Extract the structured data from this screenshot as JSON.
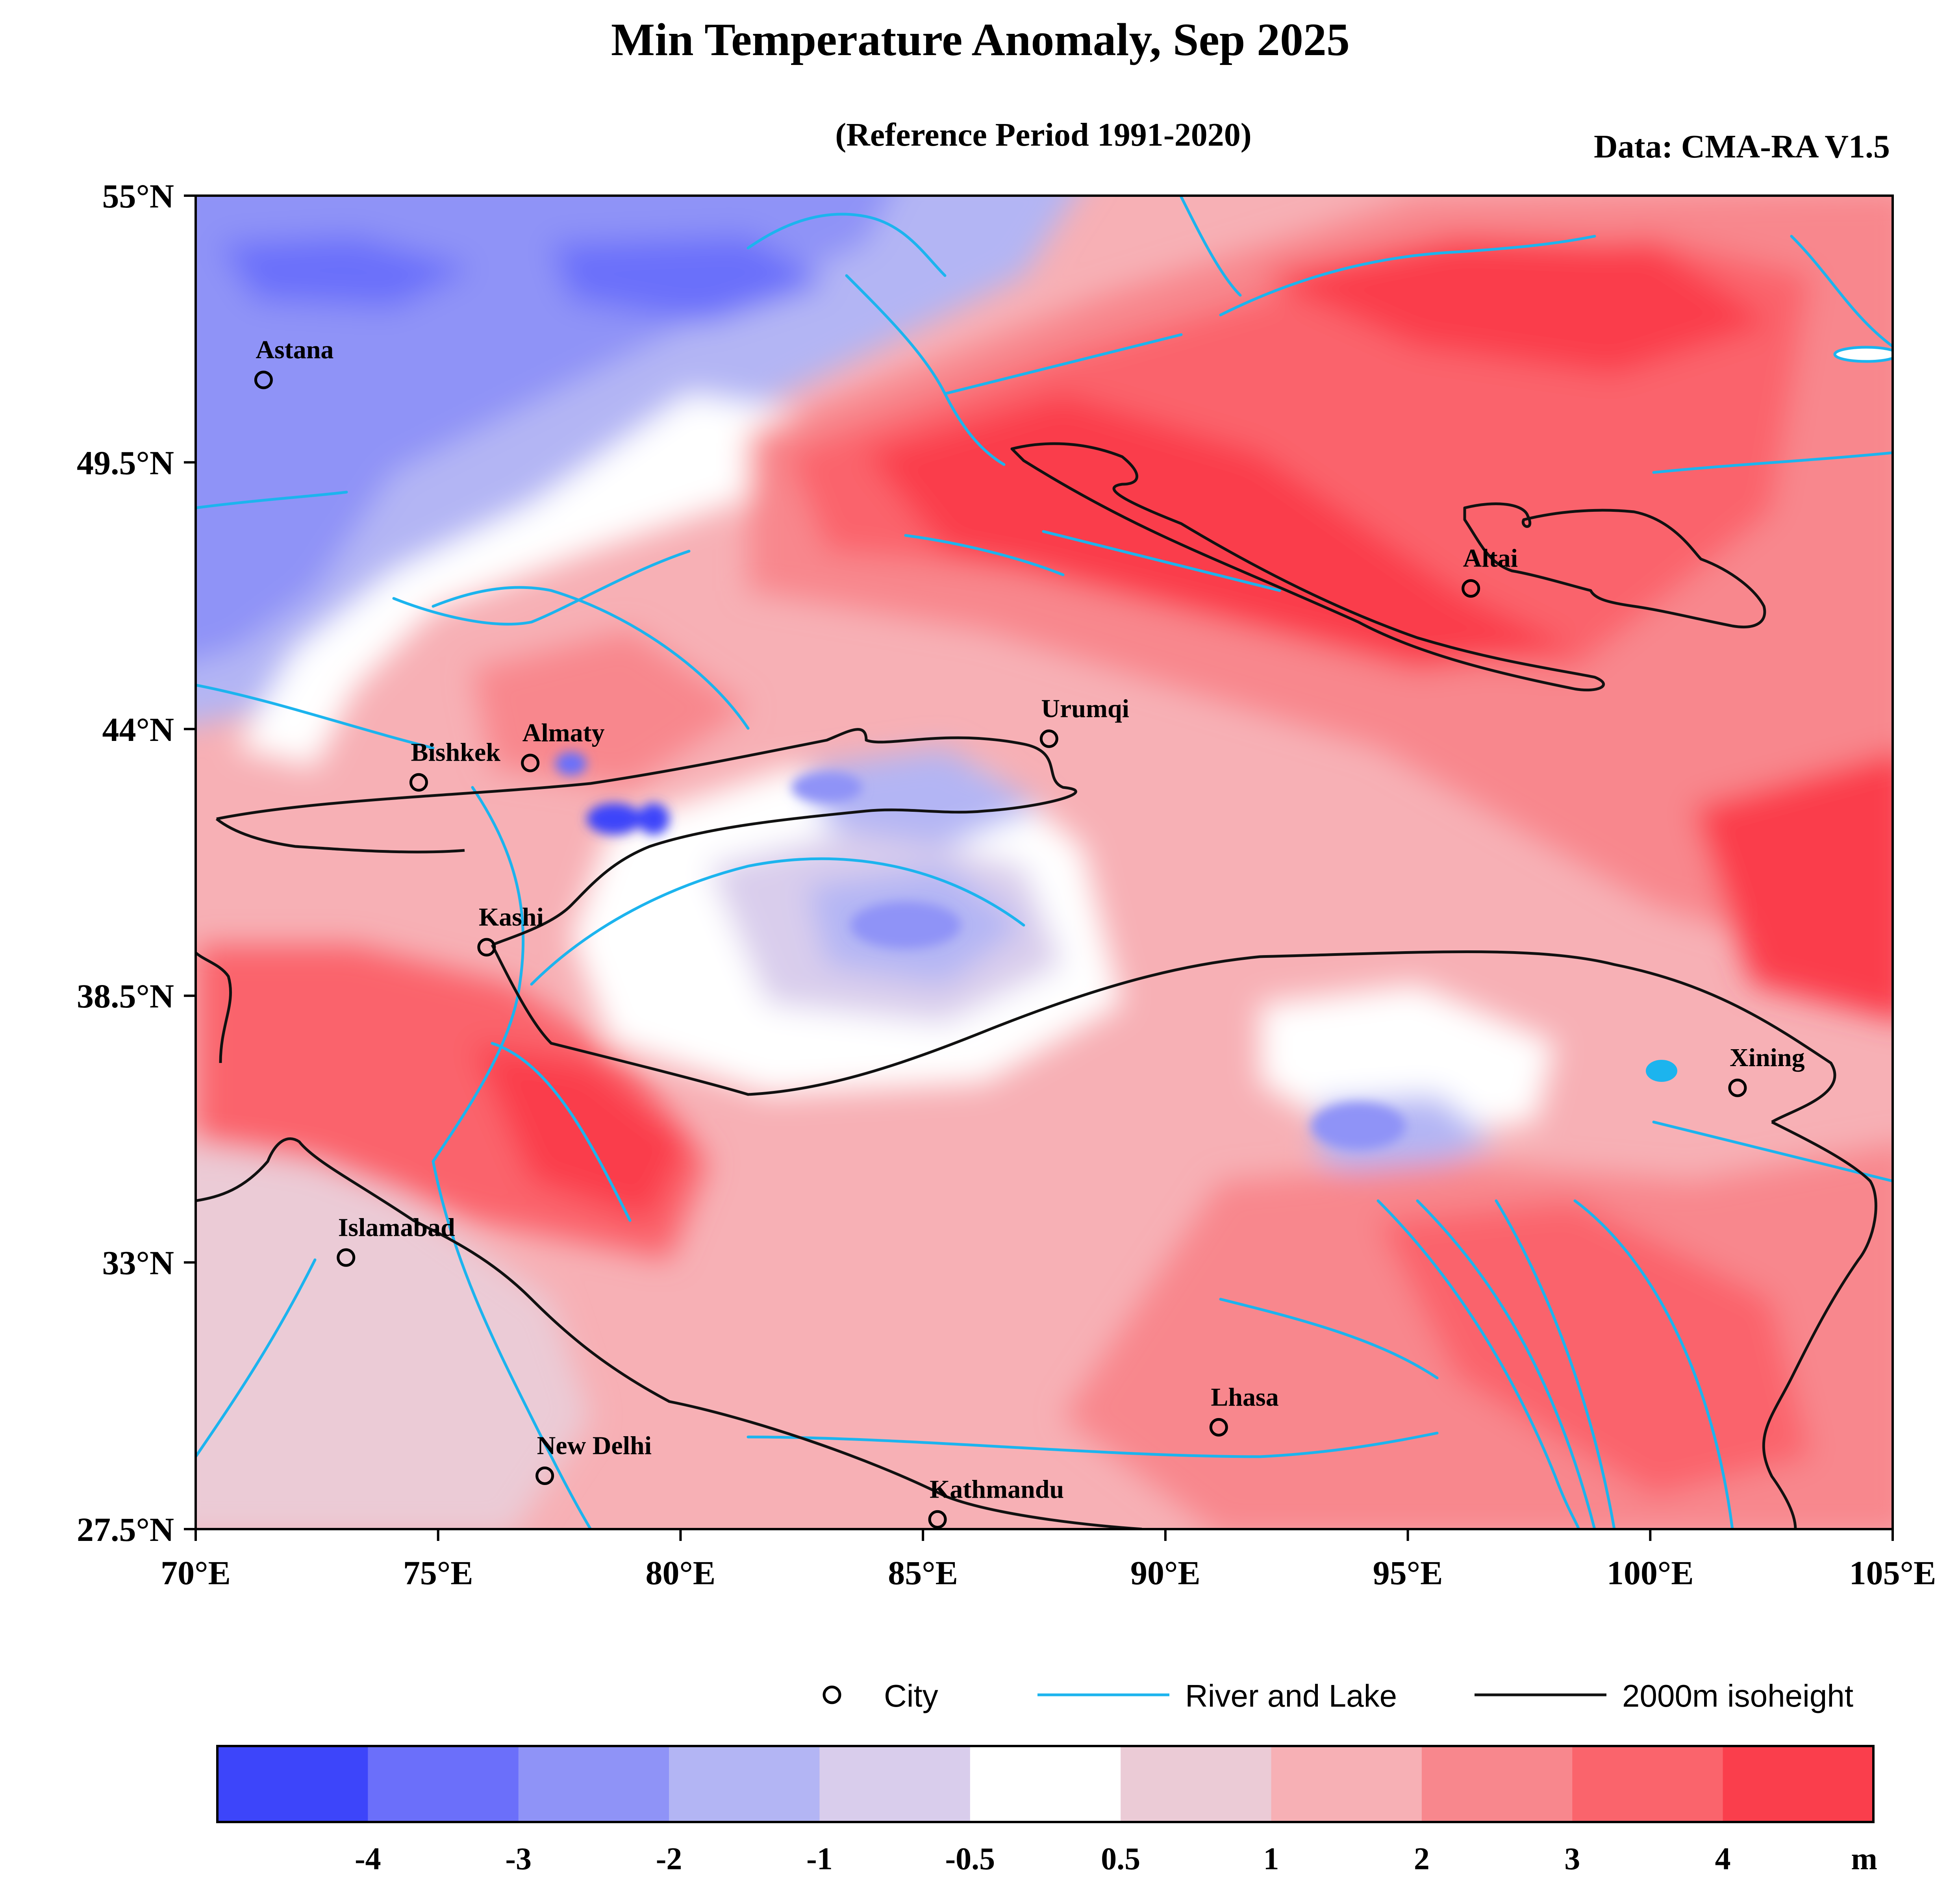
{
  "title": "Min Temperature Anomaly, Sep 2025",
  "subtitle": "(Reference Period 1991-2020)",
  "source": "Data: CMA-RA V1.5",
  "lon_range": [
    70,
    105
  ],
  "lat_range": [
    27.5,
    55
  ],
  "x_ticks": [
    {
      "value": 70,
      "label": "70°E"
    },
    {
      "value": 75,
      "label": "75°E"
    },
    {
      "value": 80,
      "label": "80°E"
    },
    {
      "value": 85,
      "label": "85°E"
    },
    {
      "value": 90,
      "label": "90°E"
    },
    {
      "value": 95,
      "label": "95°E"
    },
    {
      "value": 100,
      "label": "100°E"
    },
    {
      "value": 105,
      "label": "105°E"
    }
  ],
  "y_ticks": [
    {
      "value": 55,
      "label": "55°N"
    },
    {
      "value": 49.5,
      "label": "49.5°N"
    },
    {
      "value": 44,
      "label": "44°N"
    },
    {
      "value": 38.5,
      "label": "38.5°N"
    },
    {
      "value": 33,
      "label": "33°N"
    },
    {
      "value": 27.5,
      "label": "27.5°N"
    }
  ],
  "cities": [
    {
      "name": "Astana",
      "lon": 71.4,
      "lat": 51.2
    },
    {
      "name": "Almaty",
      "lon": 76.9,
      "lat": 43.3
    },
    {
      "name": "Bishkek",
      "lon": 74.6,
      "lat": 42.9
    },
    {
      "name": "Urumqi",
      "lon": 87.6,
      "lat": 43.8
    },
    {
      "name": "Altai",
      "lon": 96.3,
      "lat": 46.9
    },
    {
      "name": "Kashi",
      "lon": 76.0,
      "lat": 39.5
    },
    {
      "name": "Xining",
      "lon": 101.8,
      "lat": 36.6
    },
    {
      "name": "Islamabad",
      "lon": 73.1,
      "lat": 33.1
    },
    {
      "name": "Lhasa",
      "lon": 91.1,
      "lat": 29.6
    },
    {
      "name": "New Delhi",
      "lon": 77.2,
      "lat": 28.6
    },
    {
      "name": "Kathmandu",
      "lon": 85.3,
      "lat": 27.7
    }
  ],
  "legend": {
    "city": "City",
    "river": "River and Lake",
    "isoheight": "2000m isoheight"
  },
  "colorbar": {
    "unit": "m",
    "colors": [
      "#3d45fa",
      "#6b6ffa",
      "#8f93f7",
      "#b3b5f4",
      "#d9cdec",
      "#ffffff",
      "#ebcbd6",
      "#f7b0b5",
      "#f8878d",
      "#fa646c",
      "#fa3e4c"
    ],
    "labels": [
      "-4",
      "-3",
      "-2",
      "-1",
      "-0.5",
      "0.5",
      "1",
      "2",
      "3",
      "4"
    ]
  },
  "colors": {
    "river": "#1cb4ee",
    "isoheight": "#111111"
  }
}
